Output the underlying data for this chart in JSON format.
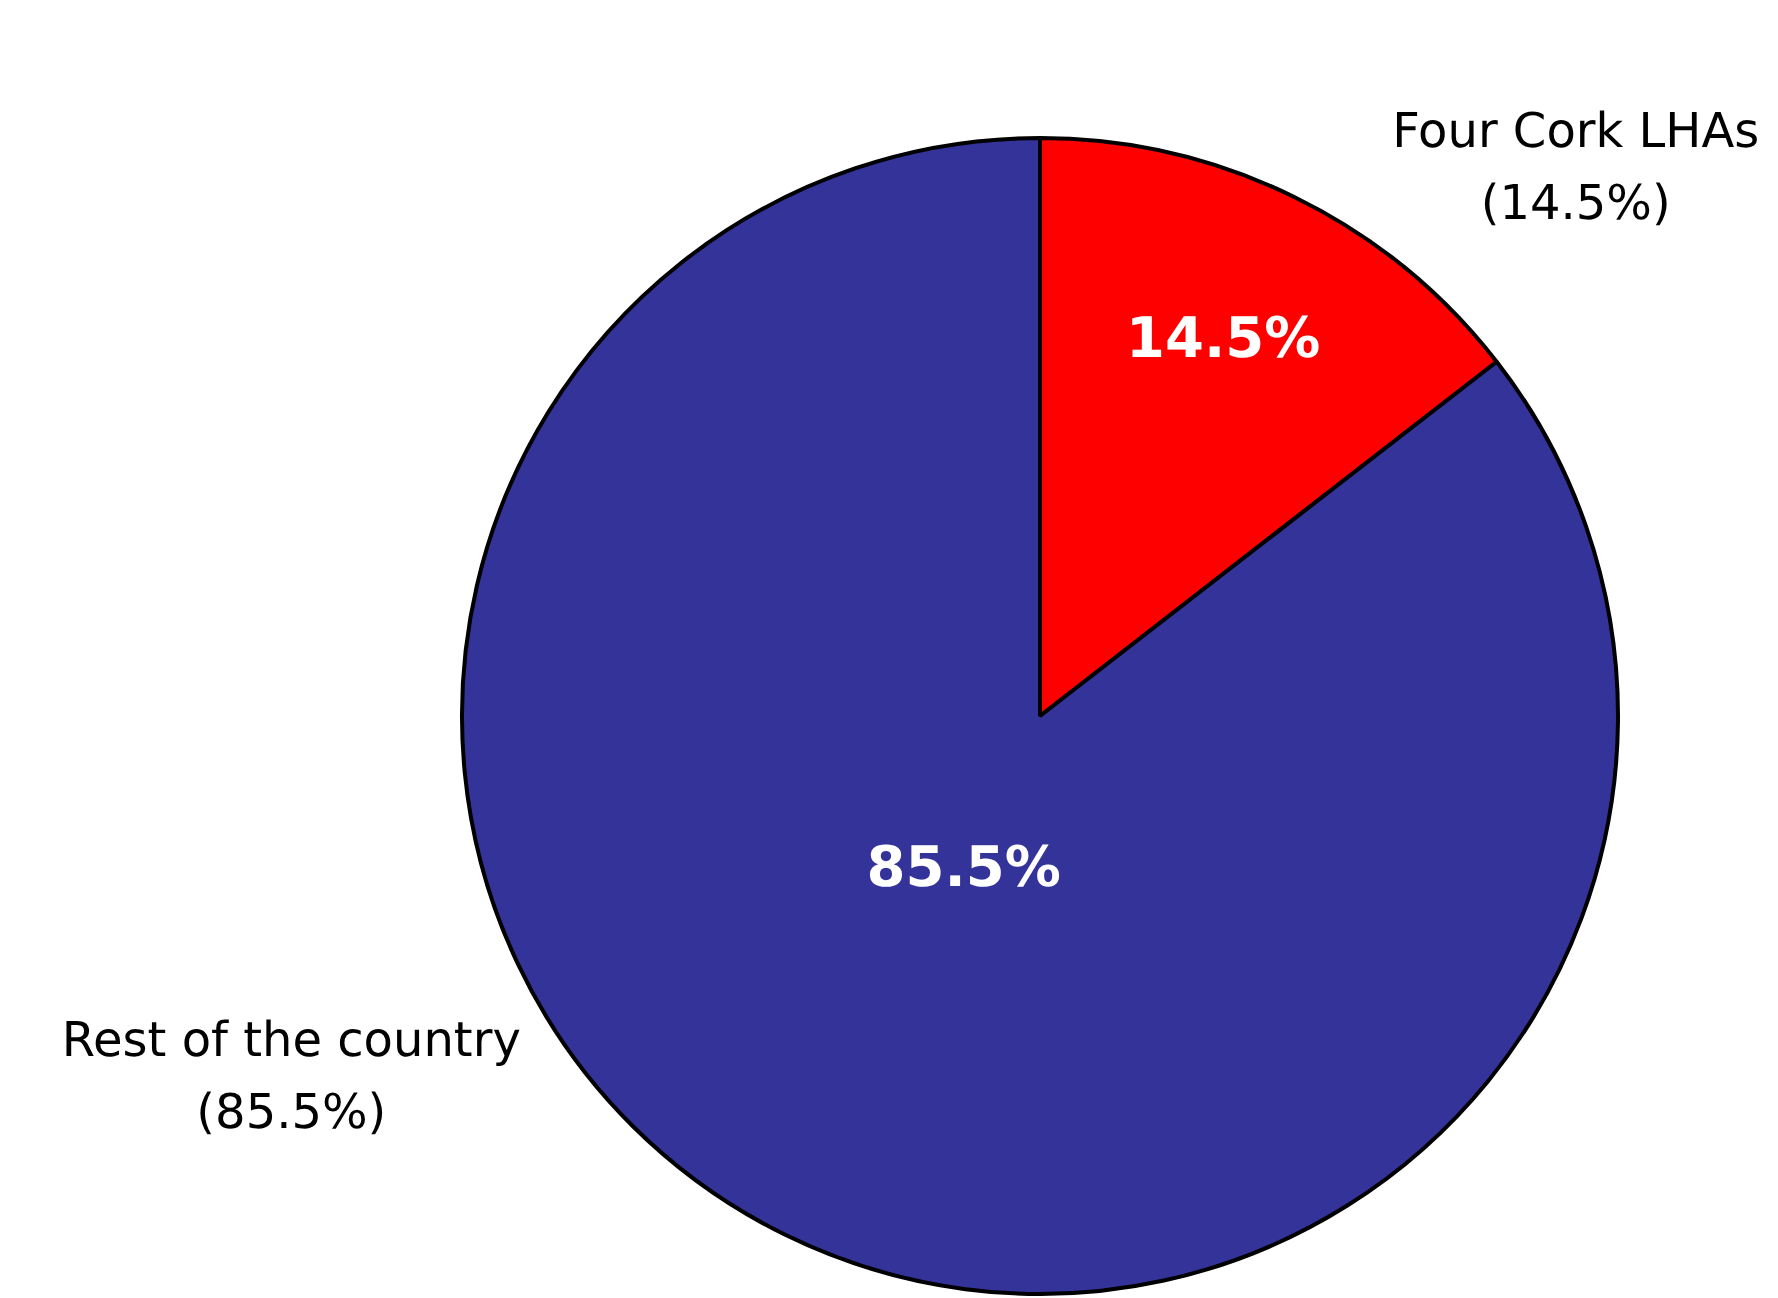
{
  "chart_data": {
    "type": "pie",
    "categories": [
      "Four Cork LHAs (14.5%)",
      "Rest of the country (85.5%)"
    ],
    "values": [
      14.5,
      85.5
    ],
    "colors": [
      "#ff0000",
      "#333399"
    ],
    "value_labels": [
      "14.5%",
      "85.5%"
    ],
    "legend": false
  }
}
